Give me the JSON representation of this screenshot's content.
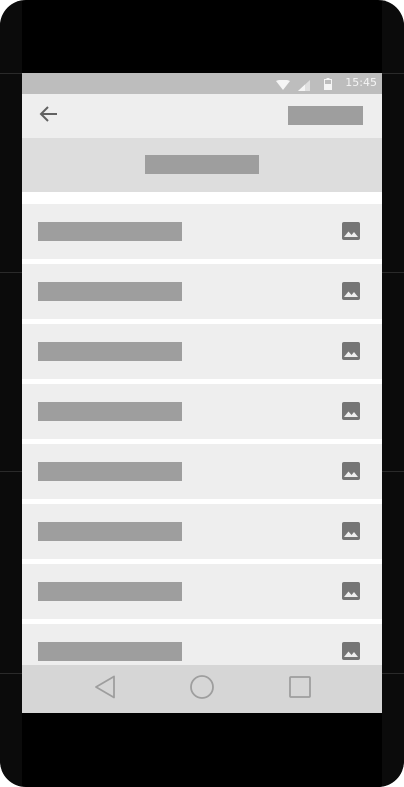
{
  "status_bar": {
    "time": "15:45",
    "icons": [
      "wifi-icon",
      "signal-icon",
      "battery-icon"
    ]
  },
  "app_bar": {
    "back_icon": "arrow-back-icon",
    "action_text": ""
  },
  "subheader": {
    "text": ""
  },
  "list": {
    "items": [
      {
        "label": "",
        "icon": "image-icon"
      },
      {
        "label": "",
        "icon": "image-icon"
      },
      {
        "label": "",
        "icon": "image-icon"
      },
      {
        "label": "",
        "icon": "image-icon"
      },
      {
        "label": "",
        "icon": "image-icon"
      },
      {
        "label": "",
        "icon": "image-icon"
      },
      {
        "label": "",
        "icon": "image-icon"
      },
      {
        "label": "",
        "icon": "image-icon"
      }
    ]
  },
  "nav_bar": {
    "buttons": [
      "back-triangle-icon",
      "home-circle-icon",
      "recents-square-icon"
    ]
  },
  "colors": {
    "placeholder": "#9e9e9e",
    "row_background": "#eeeeee",
    "subheader_background": "#dddddd",
    "status_bar": "#bdbdbd",
    "nav_bar": "#d6d6d6",
    "icon": "#757575"
  }
}
